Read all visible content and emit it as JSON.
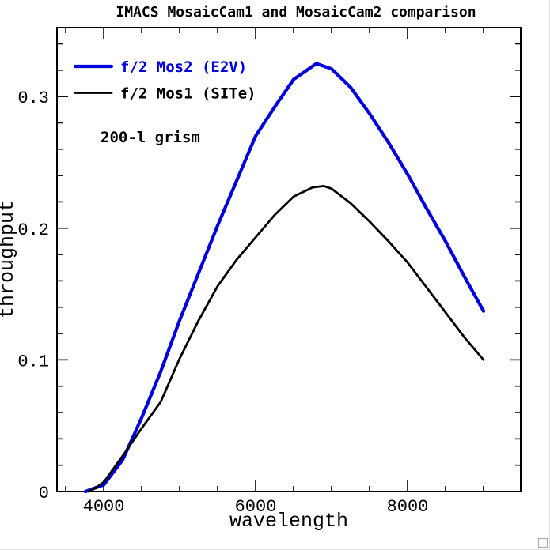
{
  "window": {
    "background": "#ffffff"
  },
  "chart_data": {
    "type": "line",
    "title": "IMACS MosaicCam1 and MosaicCam2 comparison",
    "annotation": "200-l grism",
    "xlabel": "wavelength",
    "ylabel": "throughput",
    "grid": false,
    "legend_position": "upper-left",
    "axes": {
      "xlim": [
        3385,
        9490
      ],
      "ylim": [
        0,
        0.3523
      ],
      "x_major_ticks": [
        4000,
        6000,
        8000
      ],
      "x_major_labels": [
        "4000",
        "6000",
        "8000"
      ],
      "x_minor_step": 500,
      "y_major_ticks": [
        0,
        0.1,
        0.2,
        0.3
      ],
      "y_major_labels": [
        "0",
        "0.1",
        "0.2",
        "0.3"
      ],
      "y_minor_step": 0.02,
      "major_tick_len": 14,
      "minor_tick_len": 7
    },
    "series": [
      {
        "name": "f/2 Mos2 (E2V)",
        "color": "#0000dd",
        "line_width": 4.2,
        "points": [
          [
            3760,
            0.0
          ],
          [
            3900,
            0.003
          ],
          [
            4000,
            0.005
          ],
          [
            4250,
            0.024
          ],
          [
            4500,
            0.056
          ],
          [
            4750,
            0.091
          ],
          [
            5000,
            0.13
          ],
          [
            5250,
            0.166
          ],
          [
            5500,
            0.202
          ],
          [
            5750,
            0.236
          ],
          [
            6000,
            0.27
          ],
          [
            6250,
            0.292
          ],
          [
            6500,
            0.313
          ],
          [
            6800,
            0.325
          ],
          [
            7000,
            0.321
          ],
          [
            7250,
            0.307
          ],
          [
            7500,
            0.287
          ],
          [
            7750,
            0.265
          ],
          [
            8000,
            0.241
          ],
          [
            8250,
            0.215
          ],
          [
            8500,
            0.19
          ],
          [
            8750,
            0.163
          ],
          [
            9000,
            0.137
          ]
        ]
      },
      {
        "name": "f/2 Mos1 (SITe)",
        "color": "#000000",
        "line_width": 2.8,
        "points": [
          [
            3800,
            0.0
          ],
          [
            3900,
            0.003
          ],
          [
            4000,
            0.007
          ],
          [
            4250,
            0.027
          ],
          [
            4500,
            0.048
          ],
          [
            4750,
            0.068
          ],
          [
            5000,
            0.101
          ],
          [
            5250,
            0.13
          ],
          [
            5500,
            0.156
          ],
          [
            5750,
            0.176
          ],
          [
            6000,
            0.193
          ],
          [
            6250,
            0.21
          ],
          [
            6500,
            0.224
          ],
          [
            6750,
            0.231
          ],
          [
            6900,
            0.232
          ],
          [
            7000,
            0.23
          ],
          [
            7250,
            0.219
          ],
          [
            7500,
            0.205
          ],
          [
            7750,
            0.19
          ],
          [
            8000,
            0.174
          ],
          [
            8250,
            0.155
          ],
          [
            8500,
            0.136
          ],
          [
            8750,
            0.117
          ],
          [
            9000,
            0.1
          ]
        ]
      }
    ]
  }
}
